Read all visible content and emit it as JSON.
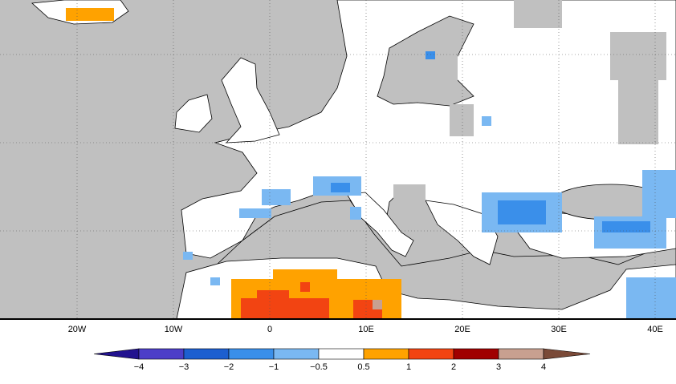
{
  "map": {
    "lon_labels": [
      "20W",
      "10W",
      "0",
      "10E",
      "20E",
      "30E",
      "40E"
    ],
    "colorbar": {
      "labels": [
        "−4",
        "−3",
        "−2",
        "−1",
        "−0.5",
        "0.5",
        "1",
        "2",
        "3",
        "4"
      ],
      "colors": [
        "#22128f",
        "#4c3ec8",
        "#1c5fd0",
        "#3a8fea",
        "#7ab8f2",
        "#ffffff",
        "#ffa200",
        "#f24412",
        "#a00000",
        "#c8a090",
        "#7a4a38"
      ]
    }
  }
}
